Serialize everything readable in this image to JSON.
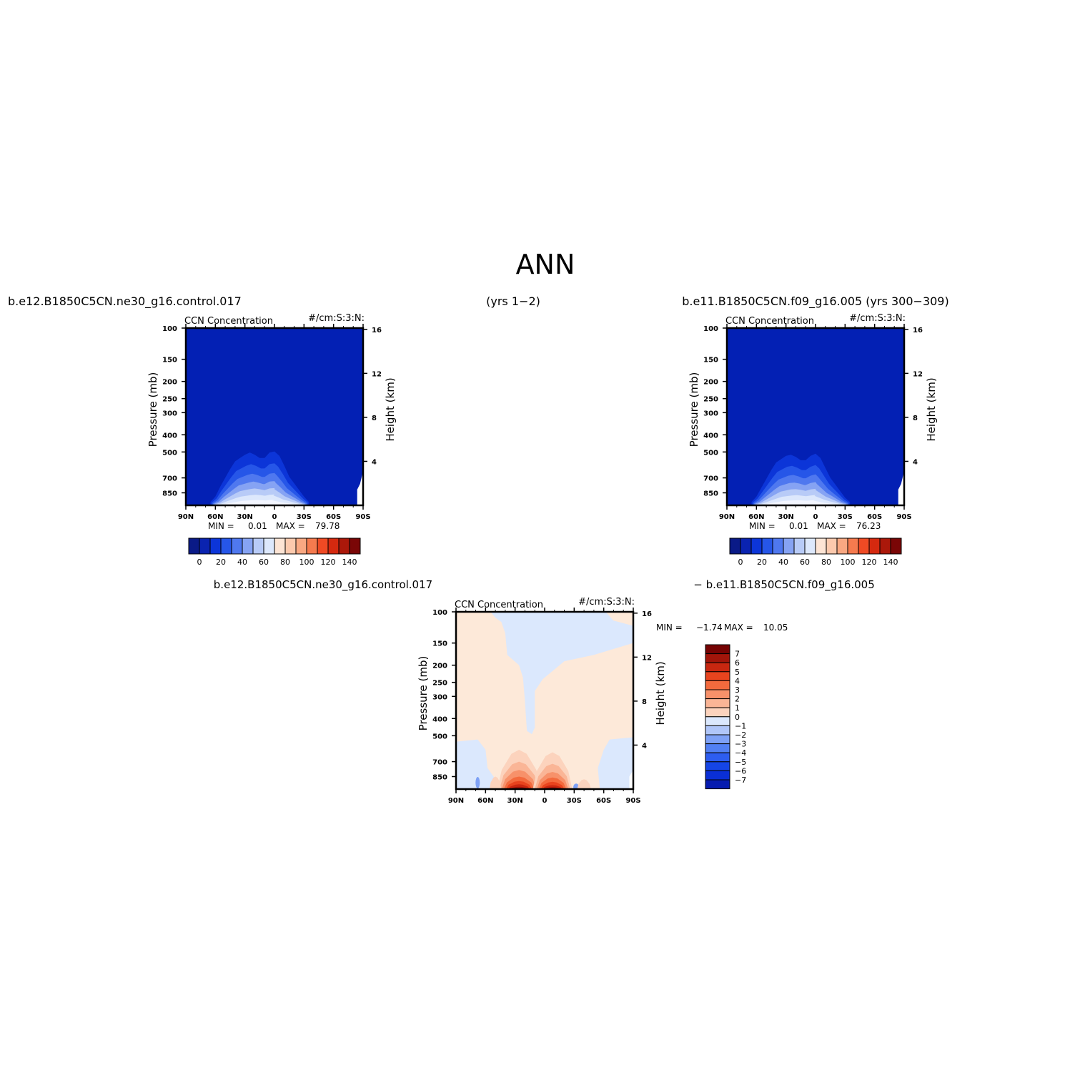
{
  "page": {
    "title": "ANN",
    "header_left": "b.e12.B1850C5CN.ne30_g16.control.017",
    "header_middle": "(yrs 1−2)",
    "header_right": "b.e11.B1850C5CN.f09_g16.005 (yrs 300−309)",
    "diff_label_left": "b.e12.B1850C5CN.ne30_g16.control.017",
    "diff_label_right": "− b.e11.B1850C5CN.f09_g16.005"
  },
  "colors": {
    "background": "#ffffff",
    "field_deep_blue": "#0320b4",
    "outer_palette": [
      "#0a1a87",
      "#0a23b0",
      "#0c35d8",
      "#2656e8",
      "#4f78ef",
      "#86a3f3",
      "#b8cbf7",
      "#dde8fc",
      "#fde4d4",
      "#fcc9ad",
      "#f9a882",
      "#f57a4e",
      "#ef4a24",
      "#d5290f",
      "#ab180a",
      "#7a0606"
    ],
    "diff_palette": [
      "#000c78",
      "#061bb0",
      "#0a2fd6",
      "#1545e6",
      "#2d5df0",
      "#5280f3",
      "#7ea1f6",
      "#b0c6f9",
      "#dbe8fd",
      "#fde9d9",
      "#fcd3bd",
      "#fab596",
      "#f7916a",
      "#f36a3d",
      "#e8441e",
      "#c82710",
      "#a2150a",
      "#760303"
    ]
  },
  "chart_data": [
    {
      "type": "heatmap",
      "panel": "top-left",
      "title": "CCN Concentration",
      "units": "#/cm:S:3:N:",
      "ylabel": "Pressure (mb)",
      "ylabel_right": "Height (km)",
      "x_ticks": [
        "90N",
        "60N",
        "30N",
        "0",
        "30S",
        "60S",
        "90S"
      ],
      "x_range": [
        90,
        -90
      ],
      "y_ticks": [
        100,
        150,
        200,
        250,
        300,
        400,
        500,
        700,
        850
      ],
      "y_range": [
        100,
        1000
      ],
      "y_log": true,
      "height_ticks": [
        16,
        12,
        8,
        4
      ],
      "min_label": "MIN =",
      "min_value": "0.01",
      "max_label": "MAX =",
      "max_value": "79.78",
      "colorbar_labels": [
        "0",
        "20",
        "40",
        "60",
        "80",
        "100",
        "120",
        "140"
      ],
      "colorbar_orientation": "horizontal",
      "boundary_lower_height_km": [
        0.3,
        0.8,
        1.7,
        2.5,
        3.3,
        4.0,
        4.3,
        4.6,
        4.8,
        4.6,
        4.3,
        4.3,
        4.8,
        4.9,
        4.5,
        3.6,
        2.6,
        2.0,
        1.4,
        0.8,
        0.3
      ],
      "boundary_lat": [
        65,
        60,
        55,
        50,
        45,
        40,
        35,
        30,
        25,
        20,
        15,
        10,
        5,
        0,
        -5,
        -10,
        -15,
        -20,
        -25,
        -30,
        -35
      ]
    },
    {
      "type": "heatmap",
      "panel": "top-right",
      "title": "CCN Concentration",
      "units": "#/cm:S:3:N:",
      "ylabel": "Pressure (mb)",
      "ylabel_right": "Height (km)",
      "x_ticks": [
        "90N",
        "60N",
        "30N",
        "0",
        "30S",
        "60S",
        "90S"
      ],
      "x_range": [
        90,
        -90
      ],
      "y_ticks": [
        100,
        150,
        200,
        250,
        300,
        400,
        500,
        700,
        850
      ],
      "y_range": [
        100,
        1000
      ],
      "y_log": true,
      "height_ticks": [
        16,
        12,
        8,
        4
      ],
      "min_label": "MIN =",
      "min_value": "0.01",
      "max_label": "MAX =",
      "max_value": "76.23",
      "colorbar_labels": [
        "0",
        "20",
        "40",
        "60",
        "80",
        "100",
        "120",
        "140"
      ],
      "colorbar_orientation": "horizontal",
      "boundary_lower_height_km": [
        0.3,
        0.8,
        1.6,
        2.4,
        3.2,
        3.9,
        4.2,
        4.5,
        4.6,
        4.4,
        4.1,
        4.1,
        4.5,
        4.7,
        4.3,
        3.4,
        2.5,
        1.9,
        1.3,
        0.7,
        0.3
      ],
      "boundary_lat": [
        65,
        60,
        55,
        50,
        45,
        40,
        35,
        30,
        25,
        20,
        15,
        10,
        5,
        0,
        -5,
        -10,
        -15,
        -20,
        -25,
        -30,
        -35
      ]
    },
    {
      "type": "heatmap",
      "panel": "bottom-difference",
      "title": "CCN Concentration",
      "units": "#/cm:S:3:N:",
      "ylabel": "Pressure (mb)",
      "ylabel_right": "Height (km)",
      "x_ticks": [
        "90N",
        "60N",
        "30N",
        "0",
        "30S",
        "60S",
        "90S"
      ],
      "x_range": [
        90,
        -90
      ],
      "y_ticks": [
        100,
        150,
        200,
        250,
        300,
        400,
        500,
        700,
        850
      ],
      "y_range": [
        100,
        1000
      ],
      "y_log": true,
      "height_ticks": [
        16,
        12,
        8,
        4
      ],
      "min_label": "MIN =",
      "min_value": "−1.74",
      "max_label": "MAX =",
      "max_value": "10.05",
      "colorbar_labels": [
        "7",
        "6",
        "5",
        "4",
        "3",
        "2",
        "1",
        "0",
        "−1",
        "−2",
        "−3",
        "−4",
        "−5",
        "−6",
        "−7"
      ],
      "colorbar_orientation": "vertical",
      "features": {
        "background_value_range": [
          0,
          1
        ],
        "negative_region_value_range": [
          -1,
          0
        ],
        "max_near_lat": [
          -10,
          15
        ],
        "max_near_pressure_mb": 950
      }
    }
  ]
}
